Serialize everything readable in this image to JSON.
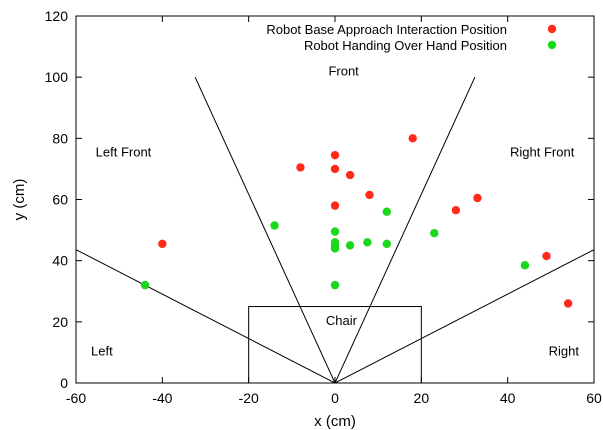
{
  "chart_data": {
    "type": "scatter",
    "xlabel": "x (cm)",
    "ylabel": "y (cm)",
    "xlim": [
      -60,
      60
    ],
    "ylim": [
      0,
      120
    ],
    "xticks": [
      -60,
      -40,
      -20,
      0,
      20,
      40,
      60
    ],
    "yticks": [
      0,
      20,
      40,
      60,
      80,
      100,
      120
    ],
    "grid": false,
    "legend_position": "top-right",
    "series": [
      {
        "name": "Robot Base Approach Interaction Position",
        "color": "#ff2a1a",
        "points": [
          {
            "x": -40,
            "y": 45.5
          },
          {
            "x": -8,
            "y": 70.5
          },
          {
            "x": 0,
            "y": 74.5
          },
          {
            "x": 0,
            "y": 70
          },
          {
            "x": 0,
            "y": 58
          },
          {
            "x": 3.5,
            "y": 68
          },
          {
            "x": 8,
            "y": 61.5
          },
          {
            "x": 18,
            "y": 80
          },
          {
            "x": 28,
            "y": 56.5
          },
          {
            "x": 33,
            "y": 60.5
          },
          {
            "x": 49,
            "y": 41.5
          },
          {
            "x": 54,
            "y": 26
          }
        ]
      },
      {
        "name": "Robot Handing Over Hand Position",
        "color": "#1ad81a",
        "points": [
          {
            "x": -44,
            "y": 32
          },
          {
            "x": -14,
            "y": 51.5
          },
          {
            "x": 0,
            "y": 49.5
          },
          {
            "x": 0,
            "y": 46
          },
          {
            "x": 0,
            "y": 45
          },
          {
            "x": 0,
            "y": 44
          },
          {
            "x": 0,
            "y": 32
          },
          {
            "x": 3.5,
            "y": 45
          },
          {
            "x": 7.5,
            "y": 46
          },
          {
            "x": 12,
            "y": 56
          },
          {
            "x": 12,
            "y": 45.5
          },
          {
            "x": 23,
            "y": 49
          },
          {
            "x": 44,
            "y": 38.5
          }
        ]
      }
    ],
    "boundary_lines": [
      {
        "from": [
          0,
          0
        ],
        "to": [
          -60,
          43.6
        ]
      },
      {
        "from": [
          0,
          0
        ],
        "to": [
          60,
          43.6
        ]
      },
      {
        "from": [
          0,
          0
        ],
        "to": [
          -32.4,
          100
        ]
      },
      {
        "from": [
          0,
          0
        ],
        "to": [
          32.4,
          100
        ]
      }
    ],
    "chair_box": {
      "x0": -20,
      "x1": 20,
      "y0": 0,
      "y1": 25
    },
    "annotations": [
      {
        "text": "Front",
        "x": 2,
        "y": 100.5
      },
      {
        "text": "Left Front",
        "x": -49,
        "y": 74
      },
      {
        "text": "Right Front",
        "x": 48,
        "y": 74
      },
      {
        "text": "Chair",
        "x": 1.5,
        "y": 19
      },
      {
        "text": "Left",
        "x": -54,
        "y": 9
      },
      {
        "text": "Right",
        "x": 53,
        "y": 9
      }
    ]
  }
}
